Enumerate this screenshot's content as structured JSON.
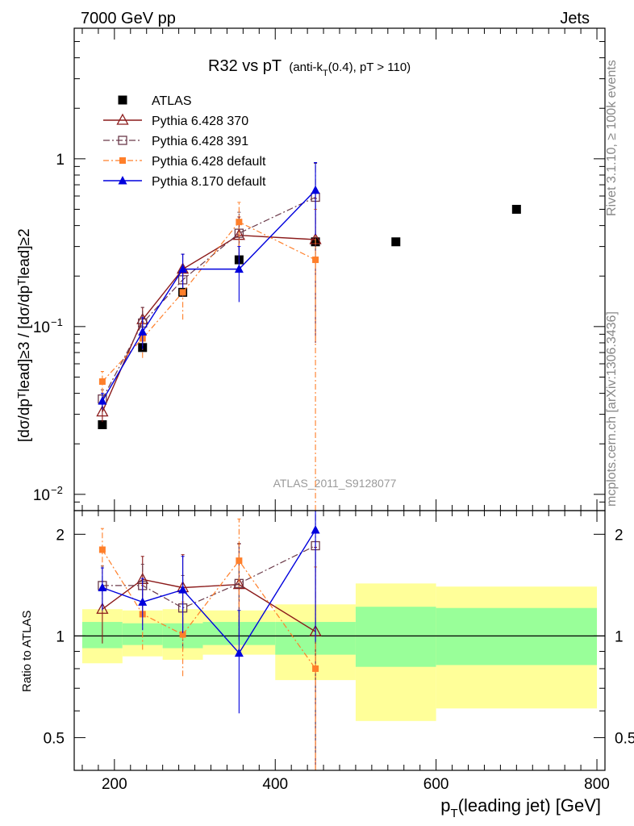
{
  "header": {
    "left": "7000 GeV pp",
    "right": "Jets"
  },
  "side_text": {
    "rivet": "Rivet 3.1.10, ≥ 100k events",
    "mcplots": "mcplots.cern.ch [arXiv:1306.3436]"
  },
  "title": {
    "main": "R32 vs pT",
    "sub_prefix": "(anti-k",
    "sub_sub": "T",
    "sub_suffix": "(0.4), pT > 110)"
  },
  "watermark": "ATLAS_2011_S9128077",
  "axes": {
    "xlabel_main": "p",
    "xlabel_sub": "T",
    "xlabel_rest": "(leading jet) [GeV]",
    "ylabel_top": "[dσ/dpᵀlead]≥3 / [dσ/dpᵀlead]≥2",
    "ylabel_bottom": "Ratio to ATLAS"
  },
  "legend": [
    "ATLAS",
    "Pythia 6.428 370",
    "Pythia 6.428 391",
    "Pythia 6.428 default",
    "Pythia 8.170 default"
  ],
  "colors": {
    "ATLAS": "#000000",
    "p370": "#8b1a1a",
    "p391": "#6b3a4a",
    "pdef": "#ff7f2a",
    "p8": "#0000dd",
    "band_inner": "#99ff99",
    "band_outer": "#ffff99"
  },
  "chart_data": [
    {
      "type": "scatter",
      "panel": "main",
      "xlim": [
        150,
        810
      ],
      "ylim": [
        0.008,
        6
      ],
      "yscale": "log",
      "x_ticks": [
        200,
        400,
        600,
        800
      ],
      "y_ticks": [
        "10^-2",
        "10^-1",
        "1"
      ],
      "series": [
        {
          "name": "ATLAS",
          "x": [
            185,
            235,
            285,
            355,
            450,
            550,
            700
          ],
          "y": [
            0.026,
            0.075,
            0.16,
            0.25,
            0.32,
            0.32,
            0.5
          ]
        },
        {
          "name": "Pythia 6.428 370",
          "x": [
            185,
            235,
            285,
            355,
            450
          ],
          "y": [
            0.031,
            0.11,
            0.22,
            0.35,
            0.33
          ],
          "err": [
            0.004,
            0.02,
            0.05,
            0.1,
            0.25
          ]
        },
        {
          "name": "Pythia 6.428 391",
          "x": [
            185,
            235,
            285,
            355,
            450
          ],
          "y": [
            0.037,
            0.105,
            0.19,
            0.36,
            0.59
          ],
          "err": [
            0.005,
            0.025,
            0.04,
            0.12,
            0.35
          ]
        },
        {
          "name": "Pythia 6.428 default",
          "x": [
            185,
            235,
            285,
            355,
            450
          ],
          "y": [
            0.047,
            0.085,
            0.16,
            0.42,
            0.25
          ],
          "err": [
            0.007,
            0.02,
            0.05,
            0.13,
            0.25
          ]
        },
        {
          "name": "Pythia 8.170 default",
          "x": [
            185,
            235,
            285,
            355,
            450
          ],
          "y": [
            0.036,
            0.093,
            0.22,
            0.22,
            0.65
          ],
          "err": [
            0.004,
            0.02,
            0.05,
            0.08,
            0.3
          ]
        }
      ]
    },
    {
      "type": "scatter",
      "panel": "ratio",
      "xlim": [
        150,
        810
      ],
      "ylim": [
        0.4,
        2.35
      ],
      "yscale": "log",
      "x_ticks": [
        200,
        400,
        600,
        800
      ],
      "y_ticks": [
        0.5,
        1,
        2
      ],
      "bands": [
        {
          "x0": 160,
          "x1": 210,
          "inner": [
            0.92,
            1.1
          ],
          "outer": [
            0.83,
            1.2
          ]
        },
        {
          "x0": 210,
          "x1": 260,
          "inner": [
            0.94,
            1.09
          ],
          "outer": [
            0.87,
            1.19
          ]
        },
        {
          "x0": 260,
          "x1": 310,
          "inner": [
            0.92,
            1.09
          ],
          "outer": [
            0.85,
            1.2
          ]
        },
        {
          "x0": 310,
          "x1": 400,
          "inner": [
            0.94,
            1.1
          ],
          "outer": [
            0.88,
            1.19
          ]
        },
        {
          "x0": 400,
          "x1": 500,
          "inner": [
            0.88,
            1.1
          ],
          "outer": [
            0.74,
            1.24
          ]
        },
        {
          "x0": 500,
          "x1": 600,
          "inner": [
            0.81,
            1.22
          ],
          "outer": [
            0.56,
            1.43
          ]
        },
        {
          "x0": 600,
          "x1": 800,
          "inner": [
            0.82,
            1.21
          ],
          "outer": [
            0.61,
            1.4
          ]
        }
      ],
      "series": [
        {
          "name": "Pythia 6.428 370",
          "x": [
            185,
            235,
            285,
            355,
            450
          ],
          "y": [
            1.2,
            1.47,
            1.39,
            1.42,
            1.03
          ],
          "err": [
            0.25,
            0.25,
            0.35,
            0.45,
            0.8
          ]
        },
        {
          "name": "Pythia 6.428 391",
          "x": [
            185,
            235,
            285,
            355,
            450
          ],
          "y": [
            1.41,
            1.41,
            1.21,
            1.43,
            1.85
          ],
          "err": [
            0.2,
            0.22,
            0.3,
            0.45,
            1.4
          ]
        },
        {
          "name": "Pythia 6.428 default",
          "x": [
            185,
            235,
            285,
            355,
            450
          ],
          "y": [
            1.8,
            1.16,
            1.01,
            1.67,
            0.8
          ],
          "err": [
            0.28,
            0.25,
            0.25,
            0.55,
            0.8
          ]
        },
        {
          "name": "Pythia 8.170 default",
          "x": [
            185,
            235,
            285,
            355,
            450
          ],
          "y": [
            1.39,
            1.26,
            1.37,
            0.89,
            2.06
          ],
          "err": [
            0.2,
            0.22,
            0.35,
            0.3,
            1.1
          ]
        }
      ]
    }
  ]
}
